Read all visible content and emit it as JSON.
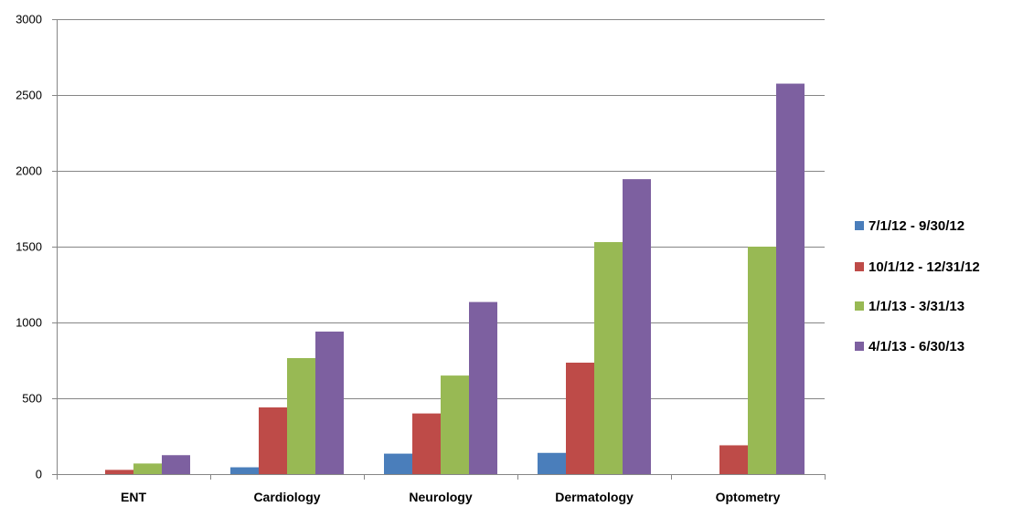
{
  "chart_data": {
    "type": "bar",
    "categories": [
      "ENT",
      "Cardiology",
      "Neurology",
      "Dermatology",
      "Optometry"
    ],
    "series": [
      {
        "name": "7/1/12 - 9/30/12",
        "color": "#4a7ebb",
        "values": [
          0,
          45,
          135,
          140,
          0
        ]
      },
      {
        "name": "10/1/12 - 12/31/12",
        "color": "#be4b48",
        "values": [
          28,
          440,
          400,
          735,
          190
        ]
      },
      {
        "name": "1/1/13 - 3/31/13",
        "color": "#98b954",
        "values": [
          70,
          765,
          650,
          1530,
          1500
        ]
      },
      {
        "name": "4/1/13 - 6/30/13",
        "color": "#7d60a0",
        "values": [
          125,
          940,
          1135,
          1945,
          2575
        ]
      }
    ],
    "yticks": [
      "0",
      "500",
      "1000",
      "1500",
      "2000",
      "2500",
      "3000"
    ],
    "ylim": [
      0,
      3000
    ],
    "grid": true,
    "legend": "right"
  }
}
